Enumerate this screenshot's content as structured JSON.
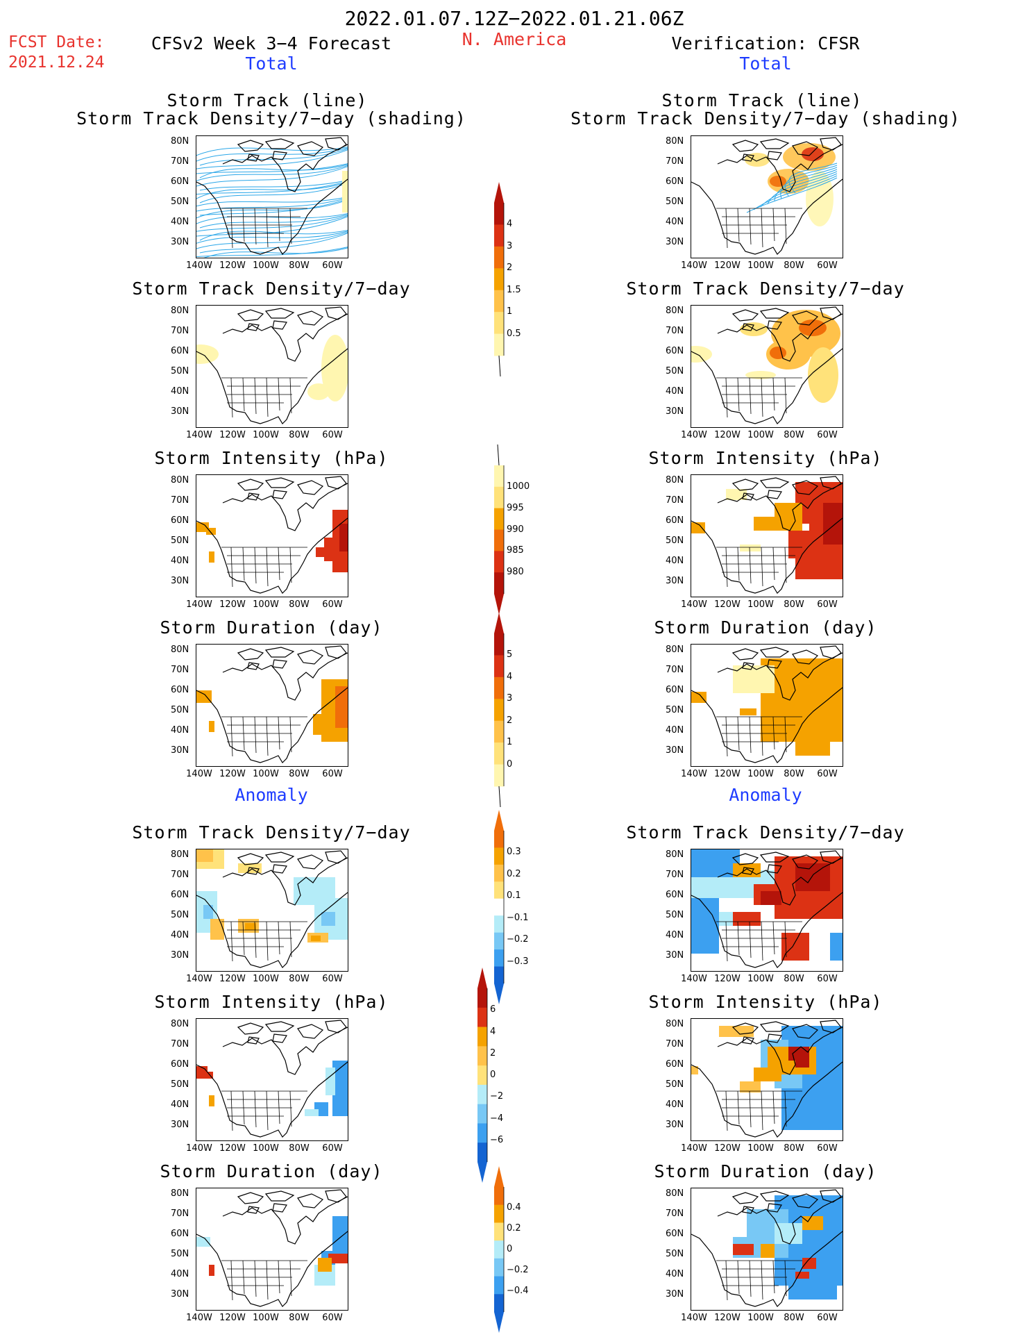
{
  "header": {
    "date_range": "2022.01.07.12Z−2022.01.21.06Z",
    "fcst_label": "FCST Date:",
    "fcst_date": "2021.12.24",
    "left_title": "CFSv2 Week 3−4 Forecast",
    "region": "N. America",
    "right_title": "Verification: CFSR",
    "left_total": "Total",
    "right_total": "Total",
    "left_anomaly": "Anomaly",
    "right_anomaly": "Anomaly"
  },
  "panel_titles": {
    "track_line": "Storm Track (line)",
    "track_shading": "Storm Track Density/7−day (shading)",
    "density": "Storm Track Density/7−day",
    "intensity": "Storm Intensity (hPa)",
    "duration": "Storm Duration (day)"
  },
  "axes": {
    "lat_labels": [
      "80N",
      "70N",
      "60N",
      "50N",
      "40N",
      "30N"
    ],
    "lon_labels": [
      "140W",
      "120W",
      "100W",
      "80W",
      "60W"
    ]
  },
  "colorbars": {
    "density": [
      "4",
      "3",
      "2",
      "1.5",
      "1",
      "0.5"
    ],
    "intensity": [
      "1000",
      "995",
      "990",
      "985",
      "980"
    ],
    "duration": [
      "5",
      "4",
      "3",
      "2",
      "1",
      "0"
    ],
    "density_anom": [
      "0.3",
      "0.2",
      "0.1",
      "−0.1",
      "−0.2",
      "−0.3"
    ],
    "intensity_anom": [
      "6",
      "4",
      "2",
      "0",
      "−2",
      "−4",
      "−6"
    ],
    "duration_anom": [
      "0.4",
      "0.2",
      "0",
      "−0.2",
      "−0.4"
    ]
  },
  "colors": {
    "pale_yellow": "#fff6b0",
    "yellow": "#ffe27a",
    "light_orange": "#ffc24a",
    "orange": "#f5a200",
    "dark_orange": "#f06e0a",
    "red": "#dc3214",
    "dark_red": "#b4140a",
    "light_blue": "#b4ecf8",
    "mid_blue": "#78c8f5",
    "blue": "#3ca0f0",
    "dark_blue": "#1464d2",
    "track_cyan": "#29a6e8"
  }
}
